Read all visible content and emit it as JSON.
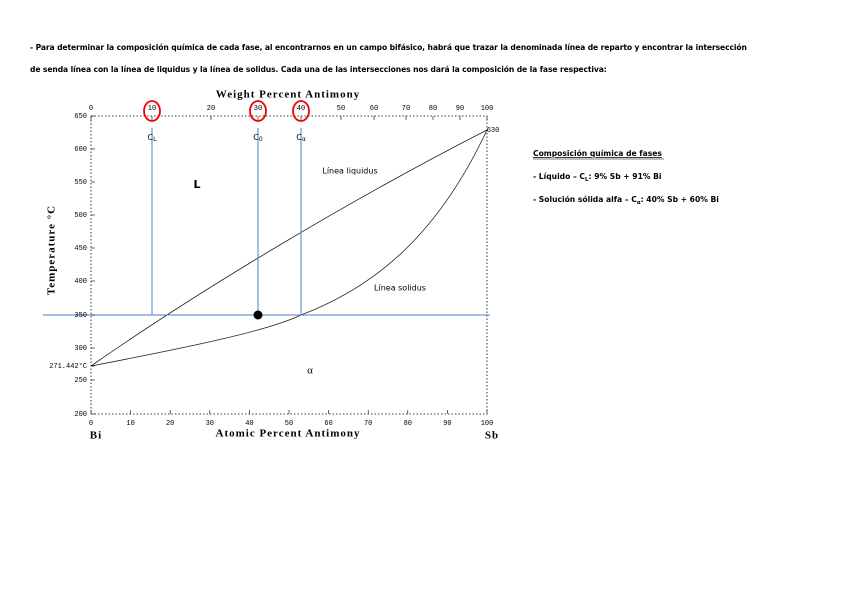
{
  "paragraph": {
    "lines": [
      "- Para determinar la composición química de cada fase, al encontrarnos en un campo bifásico, habrá que trazar la denominada línea de reparto y encontrar la intersección",
      "de senda línea con la línea de liquidus y la línea de solidus. Cada una de las intersecciones nos dará la composición de la fase respectiva:"
    ]
  },
  "figure": {
    "top_axis": {
      "title": "Weight Percent Antimony",
      "ticks": [
        "0",
        "10",
        "20",
        "30",
        "40",
        "50",
        "60",
        "70",
        "80",
        "90",
        "100"
      ]
    },
    "bottom_axis": {
      "title": "Atomic Percent Antimony",
      "ticks": [
        "0",
        "10",
        "20",
        "30",
        "40",
        "50",
        "60",
        "70",
        "80",
        "90",
        "100"
      ],
      "left_end": "Bi",
      "right_end": "Sb"
    },
    "y_axis": {
      "title": "Temperature °C",
      "ticks": [
        "650",
        "600",
        "550",
        "500",
        "450",
        "400",
        "350",
        "300",
        "271.442°C",
        "250",
        "200"
      ]
    },
    "right_label": "630",
    "regions": {
      "liquid": "L",
      "alpha": "α"
    },
    "curves": {
      "liquidus": "Línea liquidus",
      "solidus": "Línea solidus"
    },
    "markers": [
      {
        "base": "C",
        "sub": "L"
      },
      {
        "base": "C",
        "sub": "0"
      },
      {
        "base": "C",
        "sub": "α"
      }
    ]
  },
  "side_panel": {
    "heading": "Composición química de fases",
    "items": [
      {
        "prefix": "- Líquido – C",
        "sub": "L",
        "suffix": ": 9% Sb + 91% Bi"
      },
      {
        "prefix": "- Solución sólida alfa – C",
        "sub": "α",
        "suffix": ": 40% Sb + 60% Bi"
      }
    ]
  }
}
